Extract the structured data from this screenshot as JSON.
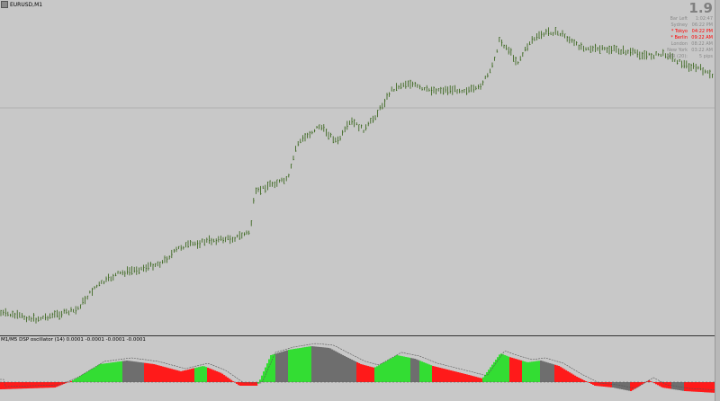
{
  "chart": {
    "symbol": "EURUSD,M1",
    "spread": "1.9",
    "info": [
      {
        "label": "Bar Left",
        "value": "1:02:47",
        "color": "#8a8a8a"
      },
      {
        "label": "Sydney",
        "value": "06:22 PM",
        "color": "#8a8a8a"
      },
      {
        "label": "* Tokyo",
        "value": "04:22 PM",
        "color": "#ff0000"
      },
      {
        "label": "* Berlin",
        "value": "09:22 AM",
        "color": "#ff0000"
      },
      {
        "label": "London",
        "value": "08:22 AM",
        "color": "#8a8a8a"
      },
      {
        "label": "New York",
        "value": "03:22 AM",
        "color": "#8a8a8a"
      },
      {
        "label": "ATR (20):",
        "value": "5 pips",
        "color": "#8a8a8a"
      }
    ],
    "colors": {
      "background": "#c8c8c8",
      "bar": "#2f5e10",
      "hline": "#9a9a9a"
    }
  },
  "oscillator": {
    "title": "M1/M5 DSP oscillator (14) 0.0001 -0.0001 -0.0001 -0.0001",
    "colors": {
      "up": "#33dd33",
      "neutral": "#6e6e6e",
      "down": "#ff1a1a",
      "signal": "#555555"
    }
  }
}
